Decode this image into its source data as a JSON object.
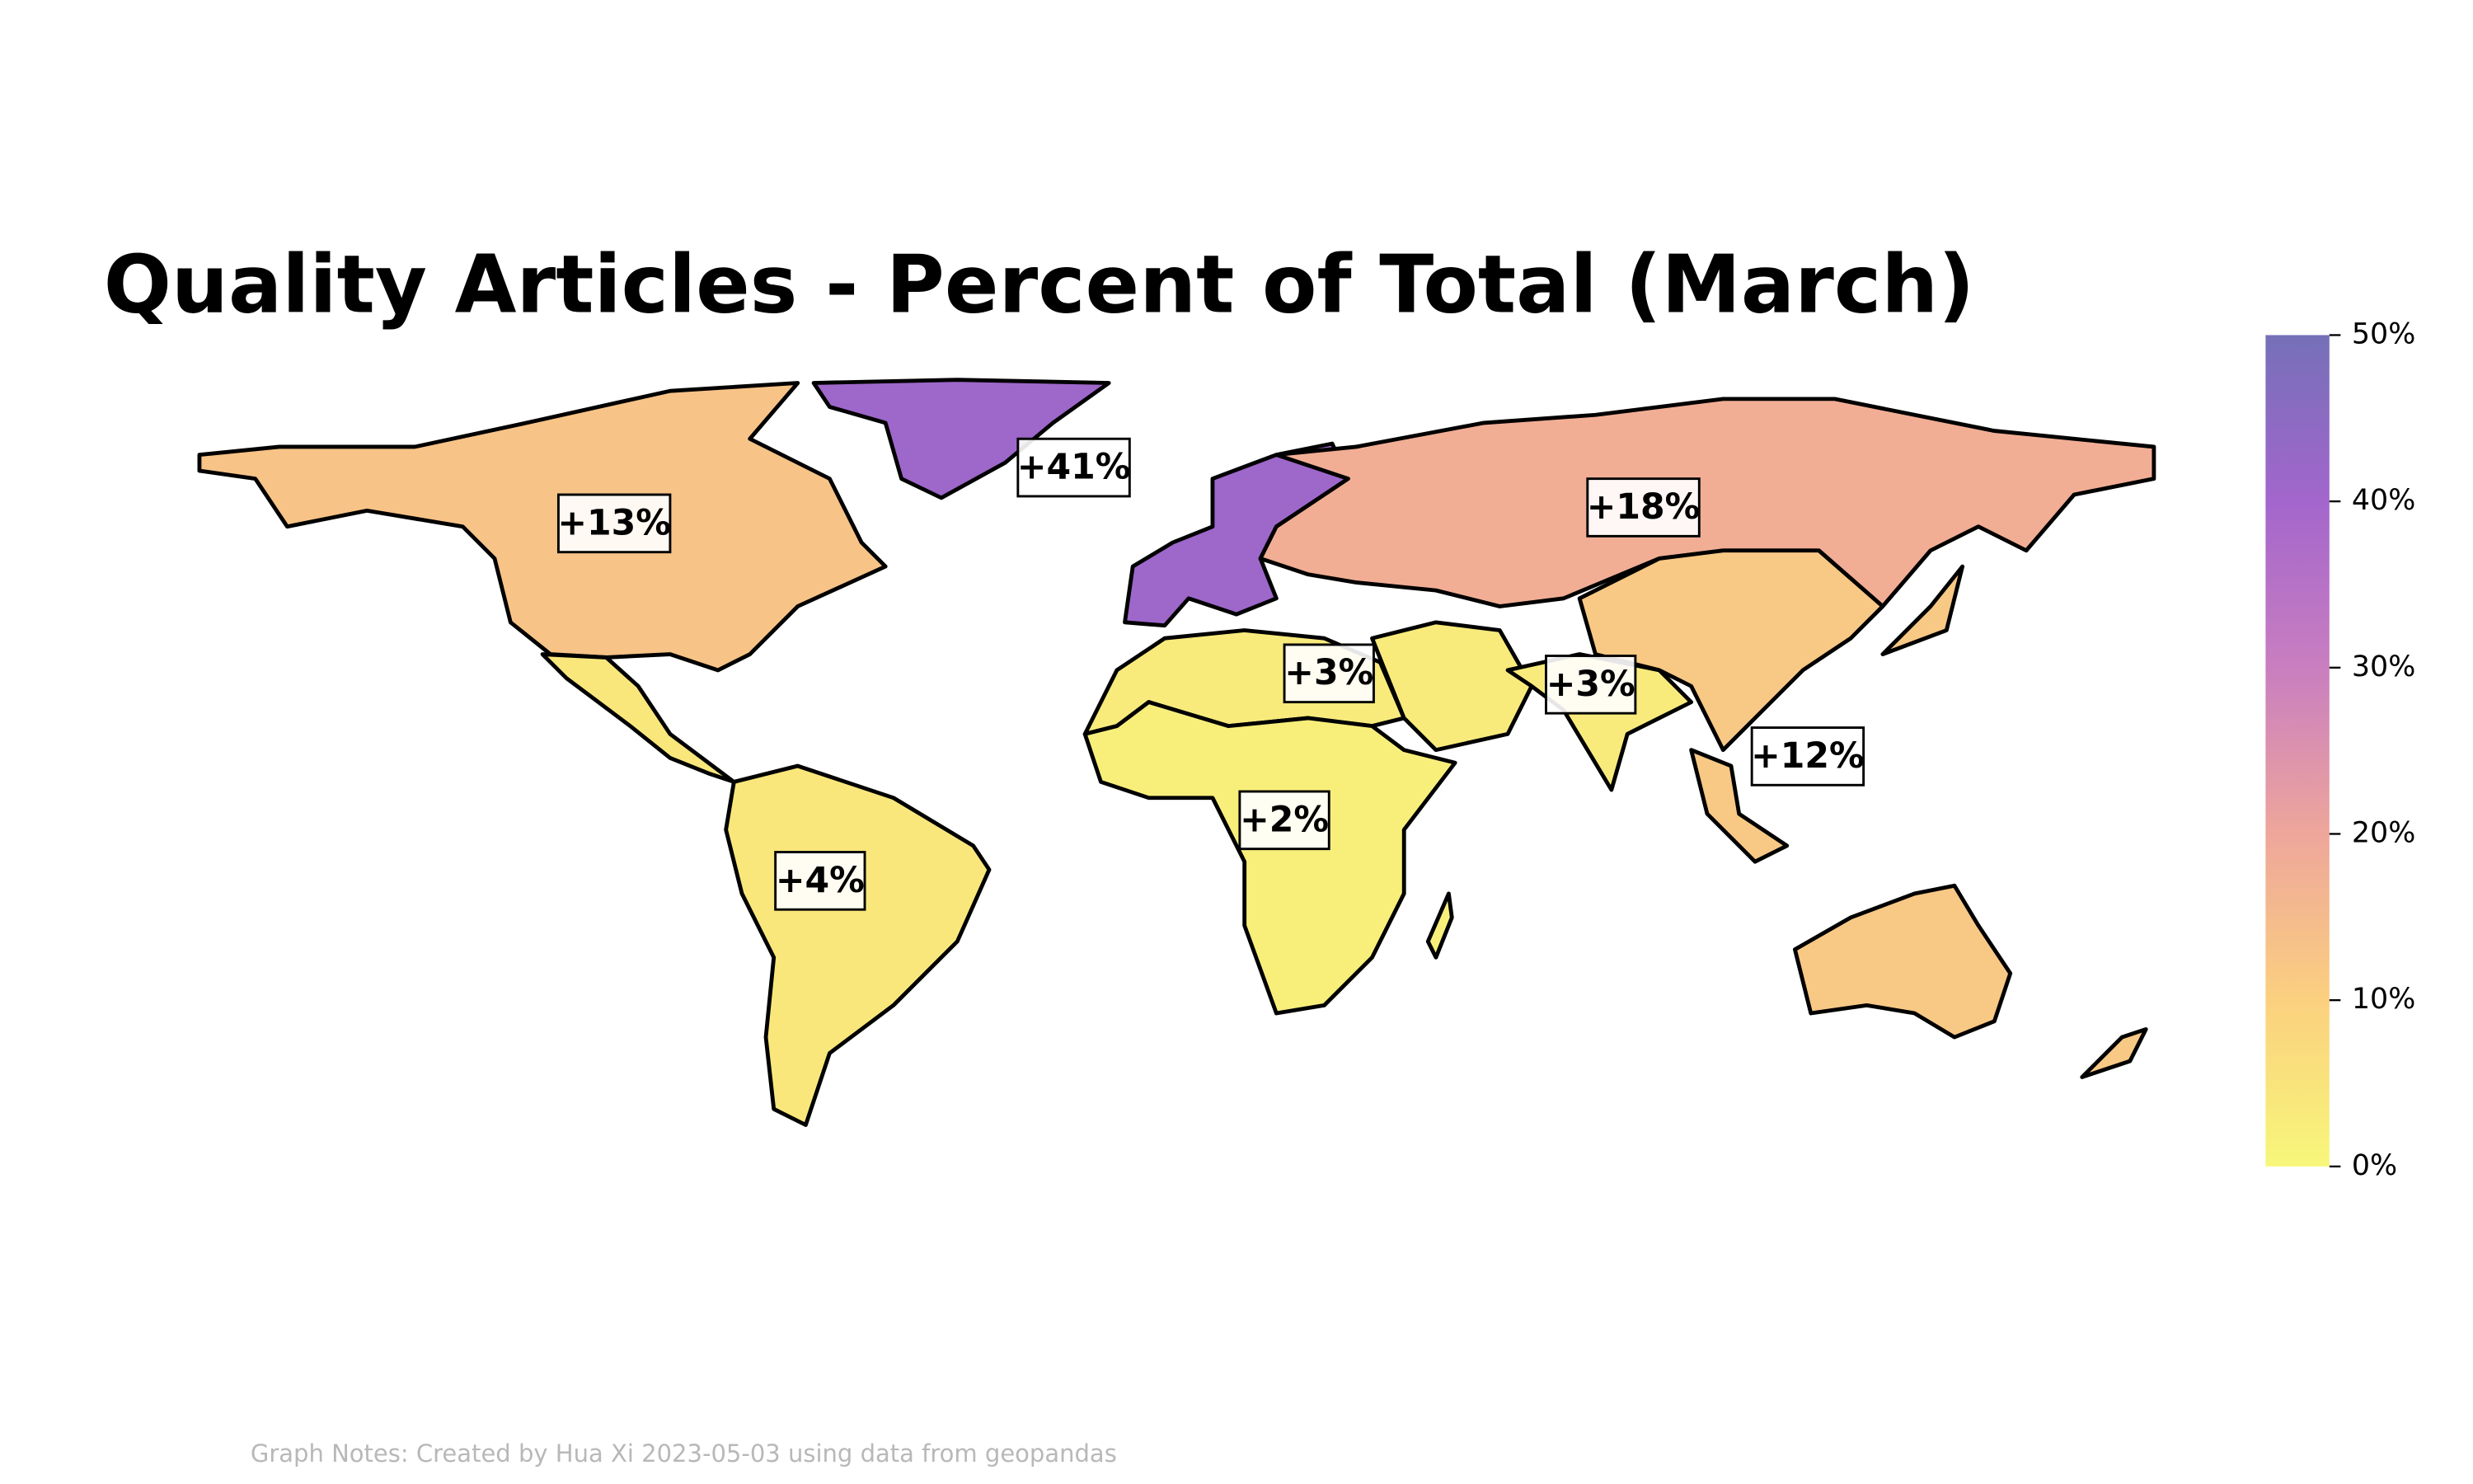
{
  "chart_data": {
    "type": "map",
    "title": "Quality Articles - Percent of Total (March)",
    "values": [
      13,
      41,
      18,
      3,
      3,
      12,
      2,
      4
    ],
    "value_labels": [
      "+13%",
      "+41%",
      "+18%",
      "+3%",
      "+3%",
      "+12%",
      "+2%",
      "+4%"
    ],
    "colormap": [
      "#f7f77a",
      "#fbd07f",
      "#eea69b",
      "#c97ec0",
      "#a366cc",
      "#7570b8"
    ],
    "ylim": [
      0,
      50
    ],
    "yticks": [
      {
        "value": 0,
        "label": "0%"
      },
      {
        "value": 10,
        "label": "10%"
      },
      {
        "value": 20,
        "label": "20%"
      },
      {
        "value": 30,
        "label": "30%"
      },
      {
        "value": 40,
        "label": "40%"
      },
      {
        "value": 50,
        "label": "50%"
      }
    ],
    "footnote": "Graph Notes: Created by Hua Xi 2023-05-03 using data from geopandas"
  }
}
